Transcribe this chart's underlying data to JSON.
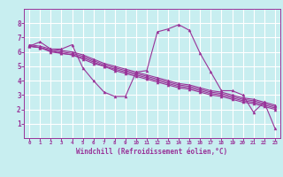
{
  "xlabel": "Windchill (Refroidissement éolien,°C)",
  "background_color": "#c8eef0",
  "grid_color": "#ffffff",
  "line_color": "#993399",
  "xlim": [
    -0.5,
    23.5
  ],
  "ylim": [
    0,
    9
  ],
  "xtick_labels": [
    "0",
    "1",
    "2",
    "3",
    "4",
    "5",
    "6",
    "7",
    "8",
    "9",
    "10",
    "11",
    "12",
    "13",
    "14",
    "15",
    "16",
    "17",
    "18",
    "19",
    "20",
    "21",
    "22",
    "23"
  ],
  "ytick_labels": [
    "1",
    "2",
    "3",
    "4",
    "5",
    "6",
    "7",
    "8"
  ],
  "series": [
    {
      "x": [
        0,
        1,
        2,
        3,
        4,
        5,
        6,
        7,
        8,
        9,
        10,
        11,
        12,
        13,
        14,
        15,
        16,
        17,
        18,
        19,
        20,
        21,
        22,
        23
      ],
      "y": [
        6.4,
        6.7,
        6.2,
        6.2,
        6.5,
        4.9,
        4.0,
        3.2,
        2.9,
        2.9,
        4.6,
        4.7,
        7.4,
        7.6,
        7.9,
        7.5,
        5.9,
        4.6,
        3.3,
        3.3,
        3.0,
        1.8,
        2.5,
        0.7
      ]
    },
    {
      "x": [
        0,
        1,
        2,
        3,
        4,
        5,
        6,
        7,
        8,
        9,
        10,
        11,
        12,
        13,
        14,
        15,
        16,
        17,
        18,
        19,
        20,
        21,
        22,
        23
      ],
      "y": [
        6.5,
        6.4,
        6.2,
        6.1,
        6.0,
        5.8,
        5.5,
        5.2,
        5.0,
        4.8,
        4.6,
        4.4,
        4.2,
        4.0,
        3.8,
        3.7,
        3.5,
        3.3,
        3.2,
        3.0,
        2.8,
        2.7,
        2.5,
        2.3
      ]
    },
    {
      "x": [
        0,
        1,
        2,
        3,
        4,
        5,
        6,
        7,
        8,
        9,
        10,
        11,
        12,
        13,
        14,
        15,
        16,
        17,
        18,
        19,
        20,
        21,
        22,
        23
      ],
      "y": [
        6.4,
        6.3,
        6.1,
        6.0,
        5.9,
        5.7,
        5.4,
        5.1,
        4.9,
        4.7,
        4.5,
        4.3,
        4.1,
        3.9,
        3.7,
        3.6,
        3.4,
        3.2,
        3.1,
        2.9,
        2.7,
        2.6,
        2.4,
        2.2
      ]
    },
    {
      "x": [
        0,
        1,
        2,
        3,
        4,
        5,
        6,
        7,
        8,
        9,
        10,
        11,
        12,
        13,
        14,
        15,
        16,
        17,
        18,
        19,
        20,
        21,
        22,
        23
      ],
      "y": [
        6.4,
        6.3,
        6.1,
        5.9,
        5.8,
        5.6,
        5.3,
        5.0,
        4.8,
        4.6,
        4.4,
        4.2,
        4.0,
        3.8,
        3.6,
        3.5,
        3.3,
        3.1,
        3.0,
        2.8,
        2.6,
        2.5,
        2.3,
        2.1
      ]
    },
    {
      "x": [
        0,
        1,
        2,
        3,
        4,
        5,
        6,
        7,
        8,
        9,
        10,
        11,
        12,
        13,
        14,
        15,
        16,
        17,
        18,
        19,
        20,
        21,
        22,
        23
      ],
      "y": [
        6.4,
        6.3,
        6.0,
        5.9,
        5.8,
        5.5,
        5.2,
        5.0,
        4.7,
        4.5,
        4.3,
        4.1,
        3.9,
        3.7,
        3.5,
        3.4,
        3.2,
        3.0,
        2.9,
        2.7,
        2.5,
        2.4,
        2.2,
        2.0
      ]
    }
  ]
}
